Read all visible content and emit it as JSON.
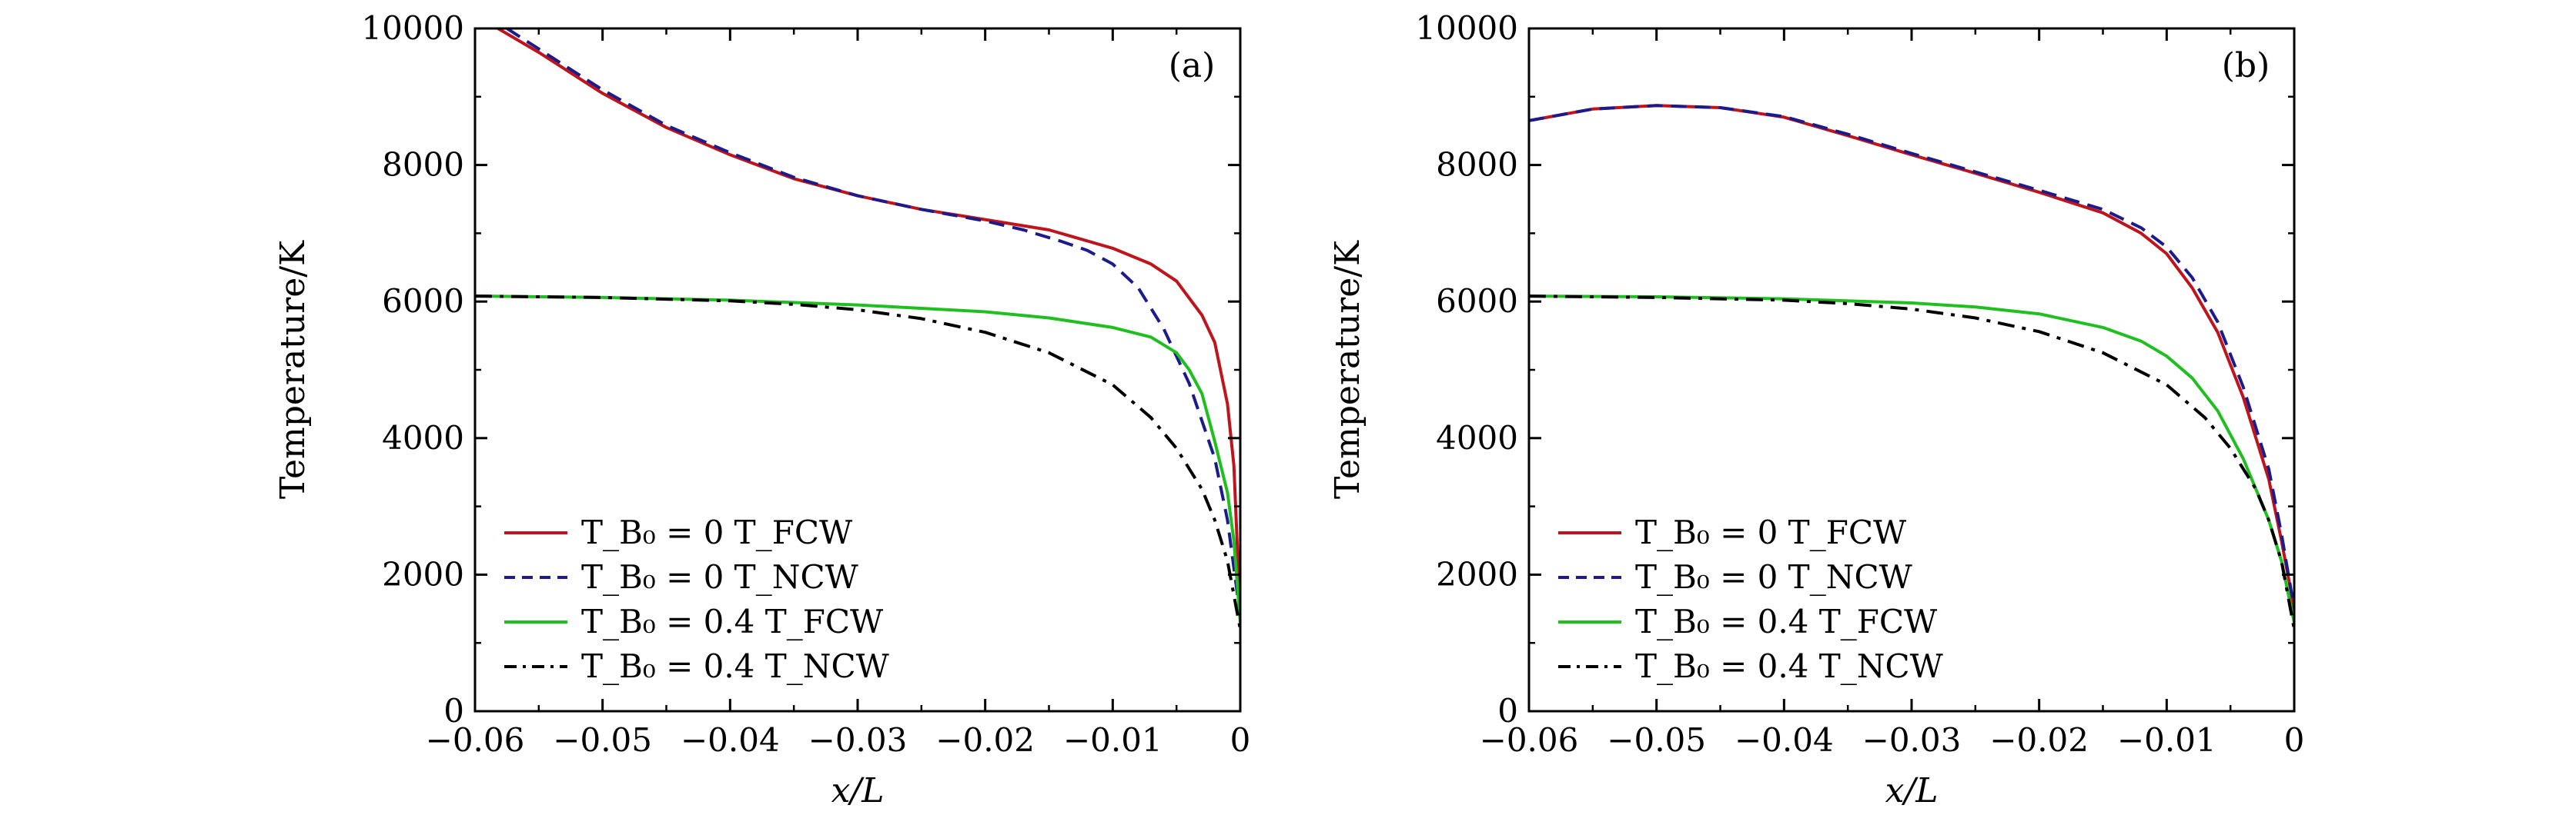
{
  "colors": {
    "fcw_b0_0": "#c0141c",
    "ncw_b0_0": "#1b1b8c",
    "fcw_b0_04": "#1fbf1f",
    "ncw_b0_04": "#000000"
  },
  "chart_data": [
    {
      "type": "line",
      "panel_label": "(a)",
      "xlabel": "x/L",
      "ylabel": "Temperature/K",
      "xlim": [
        -0.06,
        0
      ],
      "ylim": [
        0,
        10000
      ],
      "x_ticks": [
        -0.06,
        -0.05,
        -0.04,
        -0.03,
        -0.02,
        -0.01,
        0
      ],
      "x_tick_labels": [
        "−0.06",
        "−0.05",
        "−0.04",
        "−0.03",
        "−0.02",
        "−0.01",
        "0"
      ],
      "y_ticks": [
        0,
        2000,
        4000,
        6000,
        8000,
        10000
      ],
      "y_tick_labels": [
        "0",
        "2000",
        "4000",
        "6000",
        "8000",
        "10000"
      ],
      "grid": false,
      "legend_position": "bottom-left",
      "series": [
        {
          "name": "T_B₀ = 0 T_FCW",
          "style": "solid",
          "color_key": "fcw_b0_0",
          "x": [
            -0.0582,
            -0.055,
            -0.05,
            -0.045,
            -0.04,
            -0.035,
            -0.03,
            -0.025,
            -0.02,
            -0.015,
            -0.01,
            -0.007,
            -0.005,
            -0.003,
            -0.002,
            -0.001,
            -0.0005,
            0
          ],
          "y": [
            10000,
            9650,
            9050,
            8550,
            8150,
            7800,
            7550,
            7350,
            7200,
            7050,
            6780,
            6550,
            6300,
            5800,
            5400,
            4500,
            3600,
            1400
          ]
        },
        {
          "name": "T_B₀ = 0 T_NCW",
          "style": "dashed",
          "color_key": "ncw_b0_0",
          "x": [
            -0.0575,
            -0.055,
            -0.05,
            -0.045,
            -0.04,
            -0.035,
            -0.03,
            -0.025,
            -0.02,
            -0.017,
            -0.014,
            -0.012,
            -0.01,
            -0.008,
            -0.006,
            -0.004,
            -0.002,
            -0.001,
            0
          ],
          "y": [
            10000,
            9700,
            9100,
            8580,
            8180,
            7820,
            7550,
            7350,
            7180,
            7050,
            6880,
            6750,
            6550,
            6200,
            5600,
            4800,
            3700,
            2800,
            1400
          ]
        },
        {
          "name": "T_B₀ = 0.4 T_FCW",
          "style": "solid",
          "color_key": "fcw_b0_04",
          "x": [
            -0.06,
            -0.05,
            -0.04,
            -0.03,
            -0.02,
            -0.015,
            -0.01,
            -0.007,
            -0.005,
            -0.004,
            -0.003,
            -0.002,
            -0.001,
            -0.0005,
            0
          ],
          "y": [
            6080,
            6060,
            6020,
            5950,
            5850,
            5760,
            5620,
            5480,
            5250,
            5000,
            4650,
            3950,
            3200,
            2500,
            1300
          ]
        },
        {
          "name": "T_B₀ = 0.4 T_NCW",
          "style": "dashdot",
          "color_key": "ncw_b0_04",
          "x": [
            -0.06,
            -0.05,
            -0.04,
            -0.035,
            -0.03,
            -0.025,
            -0.02,
            -0.015,
            -0.01,
            -0.007,
            -0.005,
            -0.003,
            -0.002,
            -0.001,
            0
          ],
          "y": [
            6080,
            6060,
            6010,
            5960,
            5880,
            5750,
            5550,
            5250,
            4780,
            4300,
            3850,
            3250,
            2800,
            2200,
            1200
          ]
        }
      ]
    },
    {
      "type": "line",
      "panel_label": "(b)",
      "xlabel": "x/L",
      "ylabel": "Temperature/K",
      "xlim": [
        -0.06,
        0
      ],
      "ylim": [
        0,
        10000
      ],
      "x_ticks": [
        -0.06,
        -0.05,
        -0.04,
        -0.03,
        -0.02,
        -0.01,
        0
      ],
      "x_tick_labels": [
        "−0.06",
        "−0.05",
        "−0.04",
        "−0.03",
        "−0.02",
        "−0.01",
        "0"
      ],
      "y_ticks": [
        0,
        2000,
        4000,
        6000,
        8000,
        10000
      ],
      "y_tick_labels": [
        "0",
        "2000",
        "4000",
        "6000",
        "8000",
        "10000"
      ],
      "grid": false,
      "legend_position": "bottom-left",
      "series": [
        {
          "name": "T_B₀ = 0 T_FCW",
          "style": "solid",
          "color_key": "fcw_b0_0",
          "x": [
            -0.06,
            -0.055,
            -0.05,
            -0.045,
            -0.04,
            -0.035,
            -0.03,
            -0.025,
            -0.02,
            -0.015,
            -0.012,
            -0.01,
            -0.008,
            -0.006,
            -0.004,
            -0.002,
            -0.001,
            0
          ],
          "y": [
            8650,
            8820,
            8870,
            8840,
            8700,
            8430,
            8150,
            7880,
            7600,
            7300,
            7000,
            6700,
            6200,
            5550,
            4600,
            3400,
            2500,
            1500
          ]
        },
        {
          "name": "T_B₀ = 0 T_NCW",
          "style": "dashed",
          "color_key": "ncw_b0_0",
          "x": [
            -0.06,
            -0.055,
            -0.05,
            -0.045,
            -0.04,
            -0.035,
            -0.03,
            -0.025,
            -0.02,
            -0.015,
            -0.012,
            -0.01,
            -0.008,
            -0.006,
            -0.004,
            -0.002,
            -0.001,
            0
          ],
          "y": [
            8650,
            8820,
            8870,
            8840,
            8710,
            8450,
            8170,
            7900,
            7630,
            7350,
            7080,
            6800,
            6350,
            5700,
            4750,
            3550,
            2600,
            1500
          ]
        },
        {
          "name": "T_B₀ = 0.4 T_FCW",
          "style": "solid",
          "color_key": "fcw_b0_04",
          "x": [
            -0.06,
            -0.05,
            -0.04,
            -0.03,
            -0.025,
            -0.02,
            -0.015,
            -0.012,
            -0.01,
            -0.008,
            -0.006,
            -0.004,
            -0.002,
            -0.001,
            0
          ],
          "y": [
            6080,
            6070,
            6040,
            5980,
            5920,
            5820,
            5620,
            5420,
            5200,
            4880,
            4400,
            3700,
            2800,
            2200,
            1300
          ]
        },
        {
          "name": "T_B₀ = 0.4 T_NCW",
          "style": "dashdot",
          "color_key": "ncw_b0_04",
          "x": [
            -0.06,
            -0.05,
            -0.04,
            -0.035,
            -0.03,
            -0.025,
            -0.02,
            -0.015,
            -0.01,
            -0.007,
            -0.005,
            -0.003,
            -0.002,
            -0.001,
            0
          ],
          "y": [
            6080,
            6060,
            6020,
            5970,
            5890,
            5760,
            5560,
            5250,
            4780,
            4300,
            3850,
            3250,
            2800,
            2200,
            1200
          ]
        }
      ]
    }
  ]
}
